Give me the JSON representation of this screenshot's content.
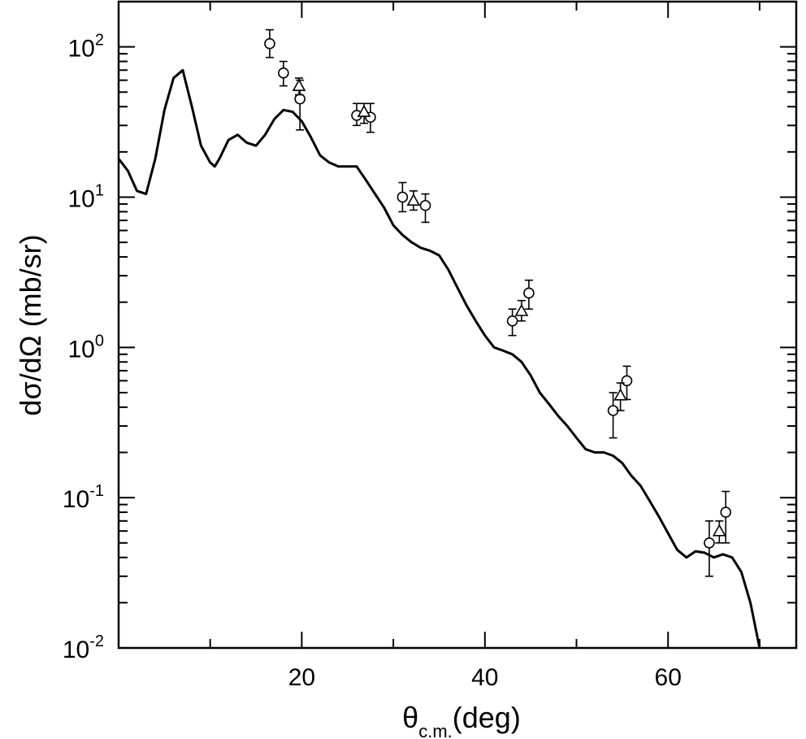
{
  "chart_data": {
    "type": "scatter",
    "xlabel": {
      "main": "θ",
      "sub": "c.m.",
      "tail": "(deg)"
    },
    "ylabel": "dσ/dΩ (mb/sr)",
    "xlim": [
      0,
      74
    ],
    "ylim": [
      0.01,
      200
    ],
    "yscale": "log",
    "grid": false,
    "x_ticks": [
      20,
      40,
      60
    ],
    "y_ticks": [
      {
        "value": 100,
        "base": "10",
        "exp": "2"
      },
      {
        "value": 10,
        "base": "10",
        "exp": "1"
      },
      {
        "value": 1,
        "base": "10",
        "exp": "0"
      },
      {
        "value": 0.1,
        "base": "10",
        "exp": "-1"
      },
      {
        "value": 0.01,
        "base": "10",
        "exp": "-2"
      }
    ],
    "series": [
      {
        "style": "line",
        "x": [
          0,
          1,
          2,
          3,
          4,
          5,
          6,
          7,
          8,
          9,
          10,
          10.5,
          11,
          12,
          13,
          14,
          15,
          16,
          17,
          18,
          19,
          20,
          21,
          22,
          23,
          24,
          25,
          26,
          27,
          28,
          29,
          30,
          31,
          32,
          33,
          34,
          35,
          36,
          37,
          38,
          39,
          40,
          41,
          42,
          43,
          44,
          45,
          46,
          47,
          48,
          49,
          50,
          51,
          52,
          53,
          54,
          55,
          56,
          57,
          58,
          59,
          60,
          61,
          62,
          63,
          64,
          65,
          66,
          67,
          68,
          69,
          70
        ],
        "y": [
          18,
          15,
          11,
          10.5,
          18,
          38,
          62,
          70,
          40,
          22,
          17,
          16,
          18,
          24,
          26,
          23,
          22,
          26,
          33,
          38,
          37,
          32,
          25,
          19,
          17,
          16,
          16,
          16,
          13,
          10.5,
          8.5,
          6.5,
          5.6,
          5.0,
          4.6,
          4.4,
          4.1,
          3.3,
          2.5,
          1.9,
          1.5,
          1.2,
          1.0,
          0.95,
          0.9,
          0.8,
          0.65,
          0.5,
          0.42,
          0.35,
          0.3,
          0.25,
          0.21,
          0.2,
          0.2,
          0.19,
          0.17,
          0.14,
          0.12,
          0.095,
          0.075,
          0.058,
          0.045,
          0.04,
          0.044,
          0.043,
          0.04,
          0.042,
          0.04,
          0.032,
          0.02,
          0.01
        ]
      },
      {
        "style": "circle",
        "x": [
          16.5,
          18.0,
          19.8,
          26.0,
          27.5,
          31.0,
          33.5,
          43.0,
          44.8,
          54.0,
          55.5,
          64.5,
          66.3
        ],
        "y": [
          105,
          67,
          45,
          35,
          34,
          10,
          8.8,
          1.5,
          2.3,
          0.38,
          0.6,
          0.05,
          0.08
        ],
        "err_lo": [
          85,
          55,
          28,
          30,
          27,
          8,
          6.8,
          1.2,
          1.8,
          0.25,
          0.45,
          0.03,
          0.05
        ],
        "err_hi": [
          130,
          80,
          60,
          42,
          42,
          12.5,
          10.5,
          1.8,
          2.8,
          0.5,
          0.75,
          0.07,
          0.11
        ]
      },
      {
        "style": "triangle",
        "x": [
          19.7,
          26.8,
          32.2,
          44.0,
          54.8,
          65.6
        ],
        "y": [
          55,
          37,
          9.5,
          1.75,
          0.48,
          0.06
        ],
        "err_lo": [
          48,
          31,
          8.2,
          1.5,
          0.38,
          0.05
        ],
        "err_hi": [
          62,
          42,
          11,
          2.05,
          0.58,
          0.07
        ]
      }
    ]
  }
}
